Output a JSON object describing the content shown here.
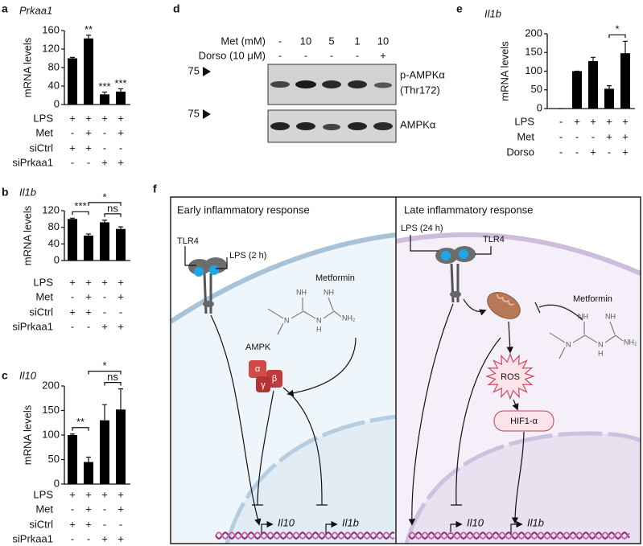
{
  "chart_data": [
    {
      "type": "bar",
      "label": "a",
      "title": "Prkaa1",
      "y_label": "mRNA levels",
      "color": "#000000",
      "values": [
        100,
        143,
        22,
        28
      ],
      "errors": [
        2,
        7,
        5,
        6
      ],
      "ylim": [
        0,
        160
      ],
      "yticks": [
        0,
        40,
        80,
        120,
        160
      ],
      "significance": [
        {
          "text": "**",
          "bar": 1
        },
        {
          "text": "***",
          "bar": 2
        },
        {
          "text": "***",
          "bar": 3
        }
      ],
      "brackets": [],
      "conditions": [
        {
          "label": "LPS",
          "signs": [
            "+",
            "+",
            "+",
            "+"
          ]
        },
        {
          "label": "Met",
          "signs": [
            "-",
            "+",
            "-",
            "+"
          ]
        },
        {
          "label": "siCtrl",
          "signs": [
            "+",
            "+",
            "-",
            "-"
          ]
        },
        {
          "label": "siPrkaa1",
          "signs": [
            "-",
            "-",
            "+",
            "+"
          ]
        }
      ]
    },
    {
      "type": "bar",
      "label": "b",
      "title": "Il1b",
      "y_label": "mRNA levels",
      "color": "#000000",
      "values": [
        100,
        60,
        92,
        76
      ],
      "errors": [
        2,
        4,
        5,
        5
      ],
      "ylim": [
        0,
        120
      ],
      "yticks": [
        0,
        40,
        80,
        120
      ],
      "significance": [],
      "brackets": [
        {
          "text": "***",
          "from": 0,
          "to": 1
        },
        {
          "text": "ns",
          "from": 2,
          "to": 3
        },
        {
          "text": "*",
          "from": 1,
          "to": 3
        }
      ],
      "conditions": [
        {
          "label": "LPS",
          "signs": [
            "+",
            "+",
            "+",
            "+"
          ]
        },
        {
          "label": "Met",
          "signs": [
            "-",
            "+",
            "-",
            "+"
          ]
        },
        {
          "label": "siCtrl",
          "signs": [
            "+",
            "+",
            "-",
            "-"
          ]
        },
        {
          "label": "siPrkaa1",
          "signs": [
            "-",
            "-",
            "+",
            "+"
          ]
        }
      ]
    },
    {
      "type": "bar",
      "label": "c",
      "title": "Il10",
      "y_label": "mRNA levels",
      "color": "#000000",
      "values": [
        100,
        45,
        130,
        152
      ],
      "errors": [
        2,
        10,
        32,
        42
      ],
      "ylim": [
        0,
        200
      ],
      "yticks": [
        0,
        50,
        100,
        150,
        200
      ],
      "significance": [],
      "brackets": [
        {
          "text": "**",
          "from": 0,
          "to": 1
        },
        {
          "text": "ns",
          "from": 2,
          "to": 3
        },
        {
          "text": "*",
          "from": 1,
          "to": 3
        }
      ],
      "conditions": [
        {
          "label": "LPS",
          "signs": [
            "+",
            "+",
            "+",
            "+"
          ]
        },
        {
          "label": "Met",
          "signs": [
            "-",
            "+",
            "-",
            "+"
          ]
        },
        {
          "label": "siCtrl",
          "signs": [
            "+",
            "+",
            "-",
            "-"
          ]
        },
        {
          "label": "siPrkaa1",
          "signs": [
            "-",
            "-",
            "+",
            "+"
          ]
        }
      ]
    },
    {
      "type": "bar",
      "label": "e",
      "title": "Il1b",
      "y_label": "mRNA levels",
      "color": "#000000",
      "values": [
        0,
        100,
        127,
        53,
        148
      ],
      "errors": [
        0,
        0,
        10,
        8,
        32
      ],
      "ylim": [
        0,
        200
      ],
      "yticks": [
        0,
        50,
        100,
        150,
        200
      ],
      "significance": [],
      "brackets": [
        {
          "text": "*",
          "from": 3,
          "to": 4
        }
      ],
      "conditions": [
        {
          "label": "LPS",
          "signs": [
            "-",
            "+",
            "+",
            "+",
            "+"
          ]
        },
        {
          "label": "Met",
          "signs": [
            "-",
            "-",
            "-",
            "+",
            "+"
          ]
        },
        {
          "label": "Dorso",
          "signs": [
            "-",
            "-",
            "+",
            "-",
            "+"
          ]
        }
      ]
    }
  ],
  "blot": {
    "label": "d",
    "conditions": [
      {
        "label": "Met (mM)",
        "signs": [
          "-",
          "10",
          "5",
          "1",
          "10"
        ]
      },
      {
        "label": "Dorso (10 μM)",
        "signs": [
          "-",
          "-",
          "-",
          "-",
          "+"
        ]
      }
    ],
    "bands": [
      {
        "marker": "75",
        "lines": [
          "p-AMPKα",
          "(Thr172)"
        ]
      },
      {
        "marker": "75",
        "lines": [
          "AMPKα"
        ]
      }
    ]
  },
  "diagram": {
    "label": "f",
    "left": {
      "title": "Early inflammatory response",
      "receptor": "TLR4",
      "ligand": "LPS (2 h)",
      "drug": "Metformin",
      "drug_atoms": [
        "NH",
        "NH",
        "N",
        "N",
        "H",
        "NH₂"
      ],
      "kinase": "AMPK",
      "subunits": [
        "α",
        "β",
        "γ"
      ],
      "genes": [
        "Il10",
        "Il1b"
      ]
    },
    "right": {
      "title": "Late inflammatory response",
      "ligand": "LPS (24 h)",
      "receptor": "TLR4",
      "drug": "Metformin",
      "drug_atoms": [
        "NH",
        "NH",
        "N",
        "N",
        "H",
        "NH₂"
      ],
      "ros": "ROS",
      "factor": "HIF1-α",
      "genes": [
        "Il10",
        "Il1b"
      ]
    }
  }
}
